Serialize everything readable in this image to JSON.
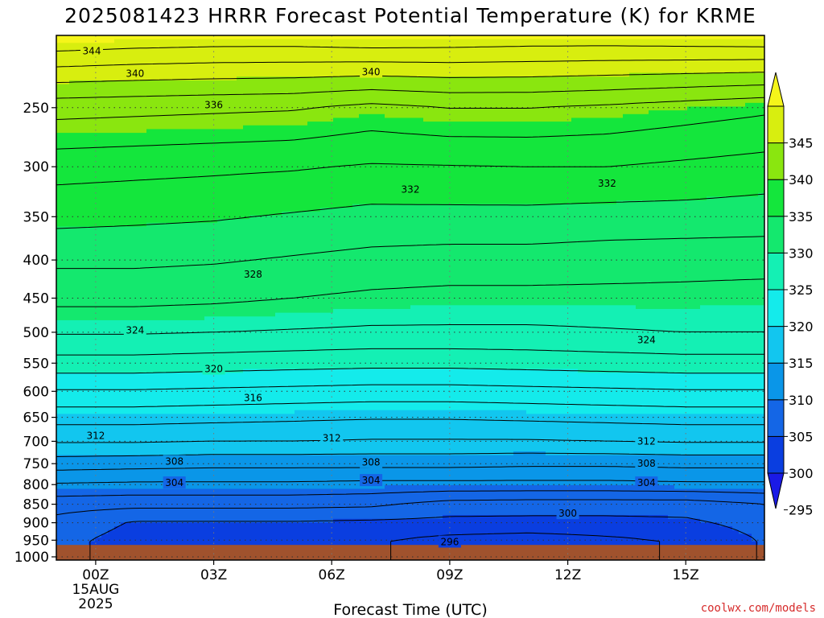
{
  "chart_data": {
    "type": "heatmap",
    "title": "2025081423 HRRR Forecast Potential Temperature (K) for KRME",
    "xlabel": "Forecast Time (UTC)",
    "credit": "coolwx.com/models",
    "x_range_hours": [
      -1,
      17
    ],
    "x_ticks": [
      {
        "hour": 0,
        "label": "00Z"
      },
      {
        "hour": 3,
        "label": "03Z"
      },
      {
        "hour": 6,
        "label": "06Z"
      },
      {
        "hour": 9,
        "label": "09Z"
      },
      {
        "hour": 12,
        "label": "12Z"
      },
      {
        "hour": 15,
        "label": "15Z"
      }
    ],
    "date_label": [
      "15AUG",
      "2025"
    ],
    "y_axis": {
      "scale": "log-pressure",
      "top_hpa": 200,
      "bottom_hpa": 1010,
      "reversed": true
    },
    "y_ticks": [
      250,
      300,
      350,
      400,
      450,
      500,
      550,
      600,
      650,
      700,
      750,
      800,
      850,
      900,
      950,
      1000
    ],
    "surface_pressure_hpa": 964,
    "colorbar": {
      "levels": [
        295,
        300,
        305,
        310,
        315,
        320,
        325,
        330,
        335,
        340,
        345
      ],
      "colors": [
        "#1a1ae6",
        "#0a3ee0",
        "#1466e6",
        "#0a96e8",
        "#12c6ef",
        "#14ebeb",
        "#14f0b4",
        "#14e86e",
        "#14e63c",
        "#8ae60f",
        "#d8ee0f",
        "#f5f51a"
      ],
      "extend": "both"
    },
    "pressure_levels": [
      200,
      250,
      300,
      350,
      400,
      450,
      500,
      550,
      600,
      650,
      700,
      750,
      800,
      850,
      900,
      950
    ],
    "x_hours": [
      -1,
      1,
      3,
      5,
      7,
      9,
      11,
      13,
      15,
      17
    ],
    "theta_K": [
      [
        346.0,
        345.6,
        345.4,
        345.4,
        345.8,
        345.6,
        345.4,
        345.4,
        345.6,
        345.8
      ],
      [
        336.8,
        336.6,
        336.4,
        336.2,
        335.4,
        336.0,
        336.0,
        335.6,
        335.0,
        334.4
      ],
      [
        332.8,
        332.6,
        332.4,
        332.2,
        331.8,
        331.9,
        332.0,
        332.0,
        331.6,
        331.2
      ],
      [
        330.6,
        330.4,
        330.2,
        329.8,
        329.4,
        329.4,
        329.4,
        329.2,
        329.2,
        329.0
      ],
      [
        328.4,
        328.4,
        328.2,
        327.8,
        327.4,
        327.2,
        327.2,
        327.0,
        326.8,
        326.8
      ],
      [
        326.6,
        326.6,
        326.4,
        326.0,
        325.6,
        325.4,
        325.4,
        325.4,
        325.4,
        325.2
      ],
      [
        324.2,
        324.2,
        324.0,
        323.8,
        323.6,
        323.6,
        323.6,
        323.8,
        324.0,
        324.0
      ],
      [
        321.2,
        321.2,
        321.0,
        320.8,
        320.6,
        320.6,
        320.8,
        321.0,
        321.2,
        321.2
      ],
      [
        317.8,
        317.8,
        317.6,
        317.4,
        317.2,
        317.2,
        317.4,
        317.6,
        317.8,
        317.8
      ],
      [
        314.8,
        314.8,
        314.6,
        314.4,
        314.2,
        314.2,
        314.4,
        314.6,
        314.8,
        314.8
      ],
      [
        312.2,
        312.2,
        312.0,
        312.0,
        311.8,
        311.8,
        311.8,
        312.0,
        312.2,
        312.2
      ],
      [
        309.0,
        308.8,
        308.6,
        308.6,
        308.6,
        308.6,
        308.4,
        308.4,
        308.6,
        308.6
      ],
      [
        305.8,
        305.6,
        305.6,
        305.6,
        305.4,
        305.4,
        305.4,
        305.4,
        305.6,
        305.6
      ],
      [
        302.8,
        302.6,
        302.6,
        302.6,
        302.4,
        301.2,
        301.0,
        301.0,
        301.0,
        302.0
      ],
      [
        301.4,
        299.8,
        299.8,
        299.8,
        299.6,
        299.4,
        299.4,
        299.4,
        299.6,
        300.8
      ],
      [
        300.6,
        299.2,
        298.8,
        298.6,
        298.2,
        297.4,
        297.0,
        297.6,
        298.2,
        300.2
      ]
    ],
    "contour_labels": [
      {
        "value": "344",
        "hour": -0.1,
        "p": 210
      },
      {
        "value": "340",
        "hour": 1.0,
        "p": 225
      },
      {
        "value": "340",
        "hour": 7.0,
        "p": 224
      },
      {
        "value": "336",
        "hour": 3.0,
        "p": 248
      },
      {
        "value": "332",
        "hour": 8.0,
        "p": 322
      },
      {
        "value": "332",
        "hour": 13.0,
        "p": 316
      },
      {
        "value": "328",
        "hour": 4.0,
        "p": 418
      },
      {
        "value": "324",
        "hour": 1.0,
        "p": 497
      },
      {
        "value": "324",
        "hour": 14.0,
        "p": 512
      },
      {
        "value": "320",
        "hour": 3.0,
        "p": 560
      },
      {
        "value": "316",
        "hour": 4.0,
        "p": 612
      },
      {
        "value": "312",
        "hour": 0.0,
        "p": 688
      },
      {
        "value": "312",
        "hour": 6.0,
        "p": 693
      },
      {
        "value": "312",
        "hour": 14.0,
        "p": 700
      },
      {
        "value": "308",
        "hour": 2.0,
        "p": 745
      },
      {
        "value": "308",
        "hour": 7.0,
        "p": 747
      },
      {
        "value": "308",
        "hour": 14.0,
        "p": 750
      },
      {
        "value": "304",
        "hour": 2.0,
        "p": 796
      },
      {
        "value": "304",
        "hour": 7.0,
        "p": 790
      },
      {
        "value": "304",
        "hour": 14.0,
        "p": 796
      },
      {
        "value": "300",
        "hour": 12.0,
        "p": 875
      },
      {
        "value": "296",
        "hour": 9.0,
        "p": 955
      }
    ]
  }
}
